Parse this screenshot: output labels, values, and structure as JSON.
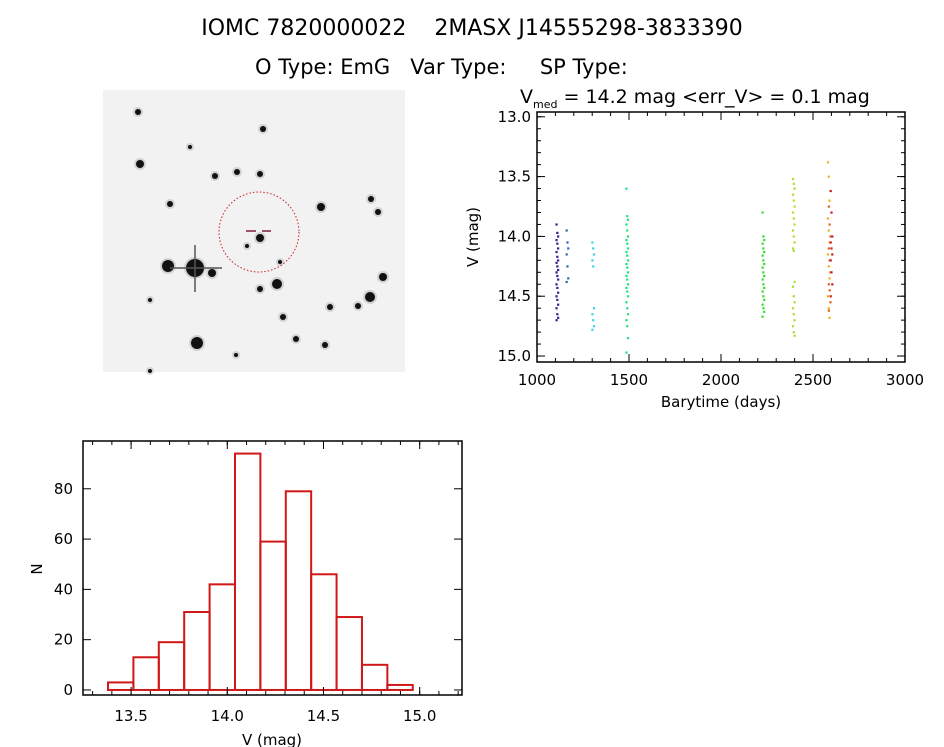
{
  "header": {
    "title": "IOMC 7820000022    2MASX J14555298-3833390",
    "subtitle": "O Type: EmG   Var Type:     SP Type:"
  },
  "sky_image": {
    "marker_color": "#cc2020"
  },
  "chart_data": [
    {
      "type": "scatter",
      "title": "V_med = 14.2 mag <err_V> = 0.1 mag",
      "title_parts": {
        "v": "V",
        "sub": "med",
        "rest": " = 14.2 mag <err_V> = 0.1 mag"
      },
      "xlabel": "Barytime (days)",
      "ylabel": "V (mag)",
      "xlim": [
        1000,
        3000
      ],
      "ylim": [
        15.05,
        12.96
      ],
      "y_inverted": true,
      "xticks": [
        1000,
        1500,
        2000,
        2500,
        3000
      ],
      "xtick_labels": [
        "1000",
        "1500",
        "2000",
        "2500",
        "3000"
      ],
      "yticks": [
        13.0,
        13.5,
        14.0,
        14.5,
        15.0
      ],
      "ytick_labels": [
        "13.0",
        "13.5",
        "14.0",
        "14.5",
        "15.0"
      ],
      "grid": false,
      "groups": [
        {
          "x": 1110,
          "color": "#3a1a9a",
          "V": [
            13.9,
            13.97,
            14.0,
            14.03,
            14.06,
            14.1,
            14.13,
            14.17,
            14.2,
            14.22,
            14.25,
            14.28,
            14.3,
            14.33,
            14.36,
            14.4,
            14.43,
            14.47,
            14.5,
            14.53,
            14.57,
            14.6,
            14.65,
            14.68,
            14.7
          ]
        },
        {
          "x": 1165,
          "color": "#2868b0",
          "V": [
            13.95,
            14.05,
            14.1,
            14.15,
            14.25,
            14.35,
            14.38
          ]
        },
        {
          "x": 1305,
          "color": "#40d0e0",
          "V": [
            14.05,
            14.1,
            14.15,
            14.2,
            14.25,
            14.6,
            14.65,
            14.7,
            14.75,
            14.78
          ]
        },
        {
          "x": 1490,
          "color": "#20e080",
          "V": [
            13.6,
            13.83,
            13.86,
            13.9,
            13.95,
            14.0,
            14.03,
            14.06,
            14.1,
            14.13,
            14.16,
            14.2,
            14.23,
            14.26,
            14.3,
            14.33,
            14.36,
            14.4,
            14.43,
            14.46,
            14.5,
            14.55,
            14.6,
            14.65,
            14.7,
            14.75,
            14.85,
            14.97
          ]
        },
        {
          "x": 2230,
          "color": "#30e030",
          "V": [
            13.8,
            14.0,
            14.03,
            14.06,
            14.1,
            14.13,
            14.16,
            14.2,
            14.23,
            14.26,
            14.3,
            14.33,
            14.36,
            14.4,
            14.43,
            14.46,
            14.5,
            14.53,
            14.57,
            14.6,
            14.63,
            14.67
          ]
        },
        {
          "x": 2395,
          "color": "#a8e030",
          "V": [
            13.52,
            13.56,
            13.6,
            13.65,
            13.7,
            13.75,
            13.8,
            13.85,
            13.9,
            13.95,
            14.0,
            14.05,
            14.1,
            14.12,
            14.38,
            14.42,
            14.5,
            14.55,
            14.6,
            14.65,
            14.7,
            14.75,
            14.8,
            14.83
          ]
        },
        {
          "x": 2585,
          "color": "#f0b020",
          "V": [
            13.38,
            13.5,
            13.7,
            13.85,
            13.95,
            14.05,
            14.15,
            14.25,
            14.35,
            14.5,
            14.6,
            14.68
          ]
        },
        {
          "x": 2590,
          "color": "#e06020",
          "V": [
            13.75,
            13.9,
            14.0,
            14.1,
            14.2,
            14.3,
            14.4,
            14.45,
            14.55,
            14.62
          ]
        },
        {
          "x": 2600,
          "color": "#c02020",
          "V": [
            13.62,
            13.8,
            14.0,
            14.05,
            14.1,
            14.15,
            14.2,
            14.3,
            14.4,
            14.5
          ]
        }
      ]
    },
    {
      "type": "bar",
      "xlabel": "V (mag)",
      "ylabel": "N",
      "xlim": [
        13.25,
        15.22
      ],
      "ylim": [
        -2,
        99
      ],
      "bin_edges": [
        13.38,
        13.512,
        13.644,
        13.776,
        13.908,
        14.04,
        14.172,
        14.304,
        14.436,
        14.568,
        14.7,
        14.832,
        14.964
      ],
      "values": [
        3,
        13,
        19,
        31,
        42,
        94,
        59,
        79,
        46,
        29,
        10,
        2
      ],
      "xticks": [
        13.5,
        14.0,
        14.5,
        15.0
      ],
      "xtick_labels": [
        "13.5",
        "14.0",
        "14.5",
        "15.0"
      ],
      "yticks": [
        0,
        20,
        40,
        60,
        80
      ],
      "ytick_labels": [
        "0",
        "20",
        "40",
        "60",
        "80"
      ],
      "bar_color": "#d01818",
      "grid": false
    }
  ]
}
